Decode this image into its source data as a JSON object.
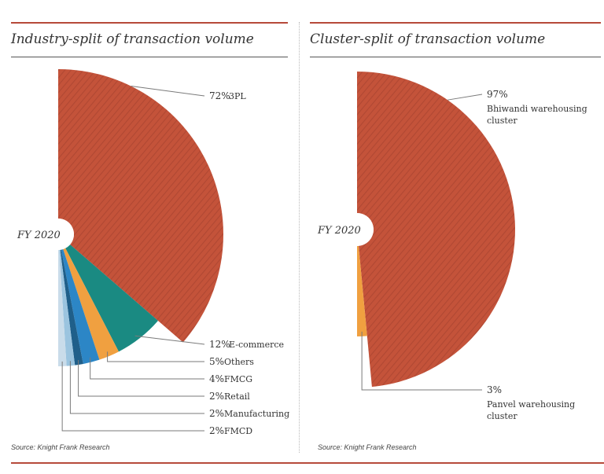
{
  "chart_data": [
    {
      "type": "pie",
      "style": "half-pie",
      "title": "Industry-split of transaction volume",
      "center_label": "FY 2020",
      "source": "Source: Knight Frank Research",
      "slices": [
        {
          "label": "3PL",
          "value": 72,
          "value_label": "72%",
          "color": "#c4533a"
        },
        {
          "label": "E-commerce",
          "value": 12,
          "value_label": "12%",
          "color": "#1a8a82"
        },
        {
          "label": "Others",
          "value": 5,
          "value_label": "5%",
          "color": "#f0a040"
        },
        {
          "label": "FMCG",
          "value": 4,
          "value_label": "4%",
          "color": "#2c86c6"
        },
        {
          "label": "Retail",
          "value": 2,
          "value_label": "2%",
          "color": "#1f5f8a"
        },
        {
          "label": "Manufacturing",
          "value": 2,
          "value_label": "2%",
          "color": "#9bc4df"
        },
        {
          "label": "FMCD",
          "value": 2,
          "value_label": "2%",
          "color": "#c9dcea"
        }
      ]
    },
    {
      "type": "pie",
      "style": "half-pie",
      "title": "Cluster-split of transaction volume",
      "center_label": "FY 2020",
      "source": "Source: Knight Frank Research",
      "slices": [
        {
          "label": "Bhiwandi warehousing cluster",
          "value": 97,
          "value_label": "97%",
          "color": "#c4533a"
        },
        {
          "label": "Panvel warehousing cluster",
          "value": 3,
          "value_label": "3%",
          "color": "#f0a040"
        }
      ]
    }
  ]
}
